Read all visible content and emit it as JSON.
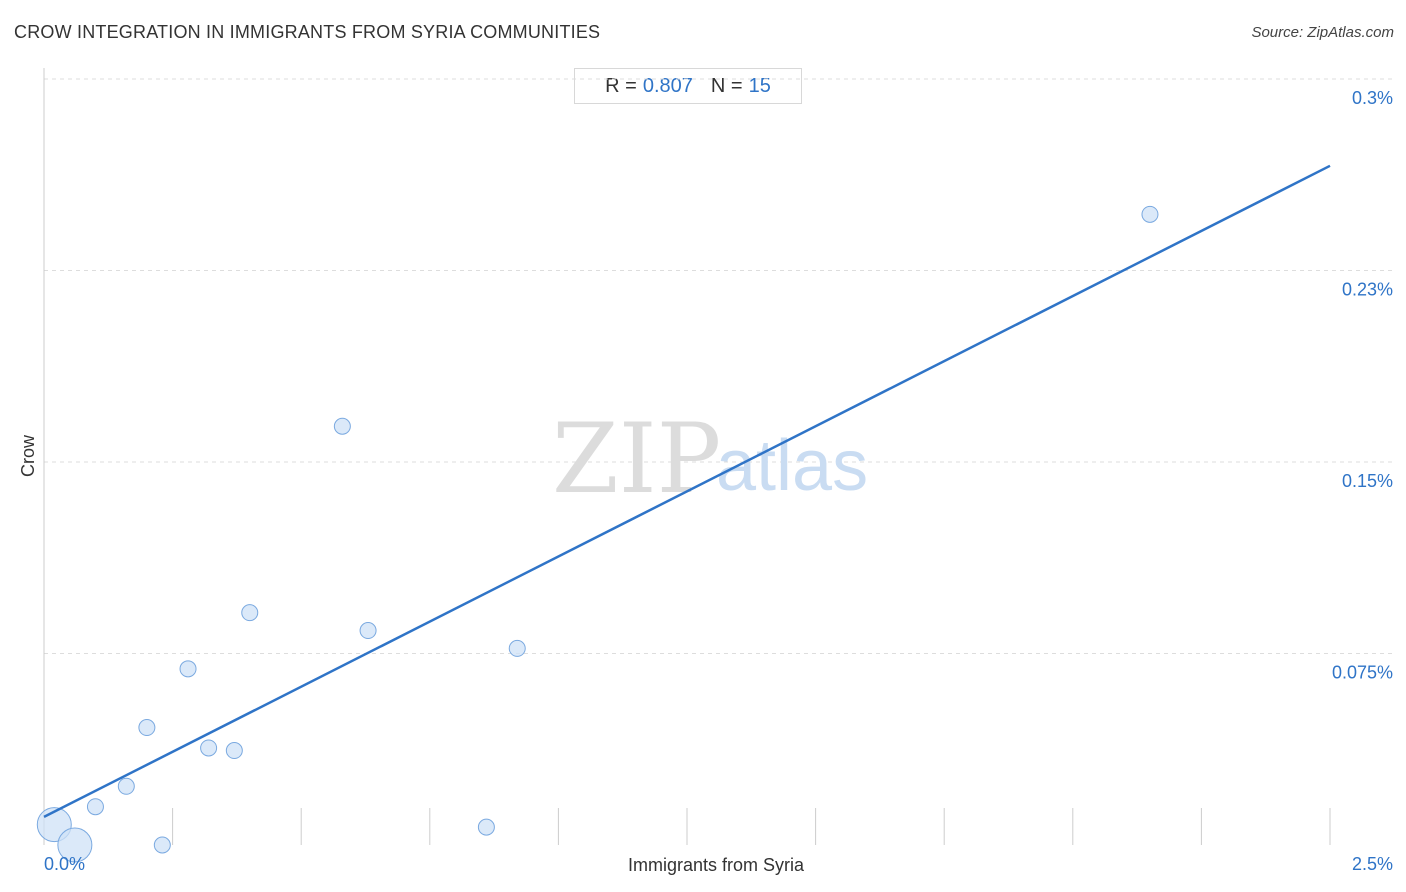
{
  "header": {
    "title": "CROW INTEGRATION IN IMMIGRANTS FROM SYRIA COMMUNITIES",
    "source": "Source: ZipAtlas.com"
  },
  "stats": {
    "r_label": "R =",
    "r_value": "0.807",
    "n_label": "N =",
    "n_value": "15"
  },
  "watermark": {
    "zip": "ZIP",
    "atlas": "atlas"
  },
  "colors": {
    "accent": "#2f74c7",
    "point_fill": "#cfe1f7",
    "point_stroke": "#7aa9e0",
    "grid": "#dddddd"
  },
  "chart_data": {
    "type": "scatter",
    "title": "CROW INTEGRATION IN IMMIGRANTS FROM SYRIA COMMUNITIES",
    "xlabel": "Immigrants from Syria",
    "ylabel": "Crow",
    "xlim": [
      0,
      2.5
    ],
    "ylim": [
      0,
      0.3
    ],
    "x_tick_labels": [
      {
        "value": 0,
        "label": "0.0%"
      },
      {
        "value": 2.5,
        "label": "2.5%"
      }
    ],
    "y_tick_labels": [
      {
        "value": 0.3,
        "label": "0.3%"
      },
      {
        "value": 0.225,
        "label": "0.23%"
      },
      {
        "value": 0.15,
        "label": "0.15%"
      },
      {
        "value": 0.075,
        "label": "0.075%"
      }
    ],
    "grid": true,
    "points": [
      {
        "x": 0.02,
        "y": 0.008,
        "size": "large"
      },
      {
        "x": 0.06,
        "y": 0.0,
        "size": "large"
      },
      {
        "x": 0.1,
        "y": 0.015,
        "size": "small"
      },
      {
        "x": 0.16,
        "y": 0.023,
        "size": "small"
      },
      {
        "x": 0.2,
        "y": 0.046,
        "size": "small"
      },
      {
        "x": 0.23,
        "y": 0.0,
        "size": "small"
      },
      {
        "x": 0.28,
        "y": 0.069,
        "size": "small"
      },
      {
        "x": 0.32,
        "y": 0.038,
        "size": "small"
      },
      {
        "x": 0.37,
        "y": 0.037,
        "size": "small"
      },
      {
        "x": 0.4,
        "y": 0.091,
        "size": "small"
      },
      {
        "x": 0.58,
        "y": 0.164,
        "size": "small"
      },
      {
        "x": 0.63,
        "y": 0.084,
        "size": "small"
      },
      {
        "x": 0.86,
        "y": 0.007,
        "size": "small"
      },
      {
        "x": 0.92,
        "y": 0.077,
        "size": "small"
      },
      {
        "x": 2.15,
        "y": 0.247,
        "size": "small"
      }
    ],
    "trendline": {
      "x": [
        0,
        2.5
      ],
      "y": [
        0.011,
        0.266
      ]
    }
  }
}
